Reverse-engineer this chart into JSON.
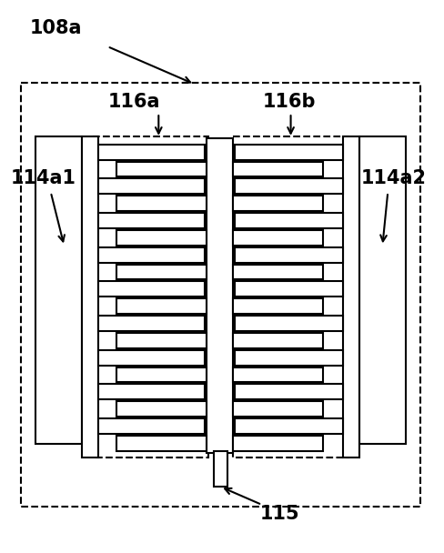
{
  "fig_width": 4.88,
  "fig_height": 6.08,
  "dpi": 100,
  "bg_color": "#ffffff",
  "lw": 1.5,
  "dlw": 1.5,
  "num_fingers": 9,
  "labels": {
    "108a": "108a",
    "114a1": "114a1",
    "114a2": "114a2",
    "116a": "116a",
    "116b": "116b",
    "115": "115"
  },
  "fontsize": 15
}
